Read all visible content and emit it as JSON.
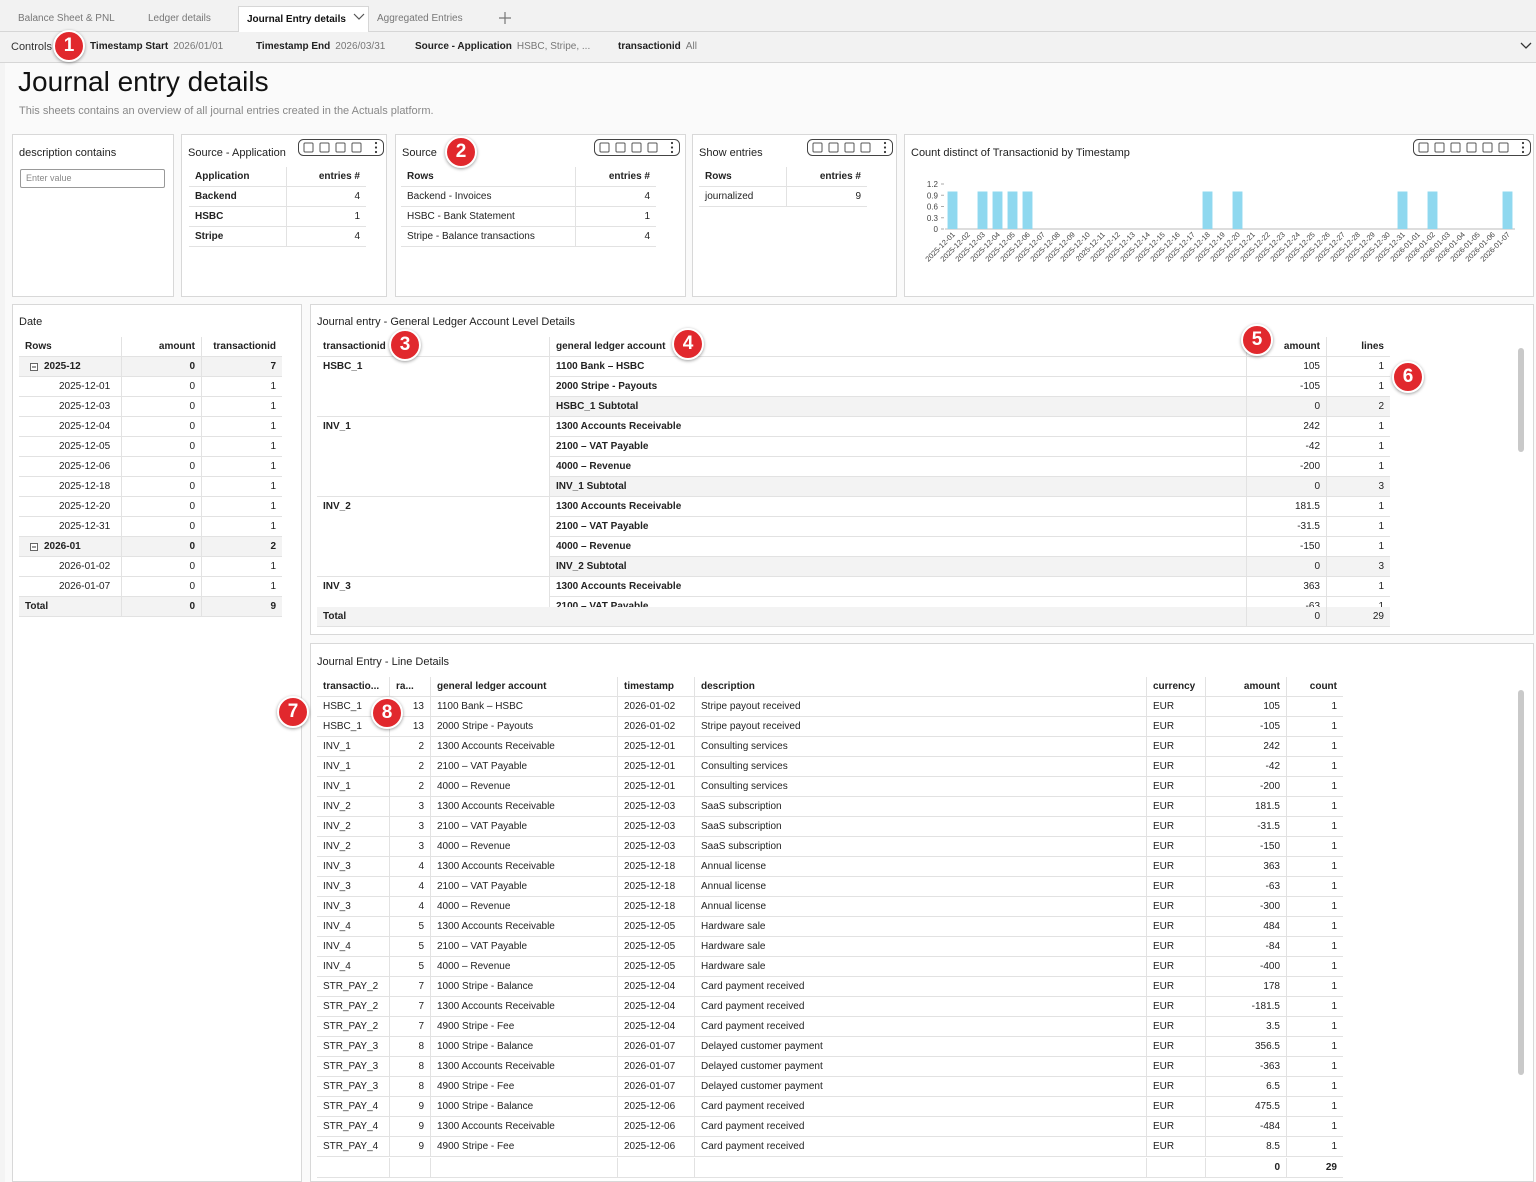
{
  "tabs": [
    "Balance Sheet & PNL",
    "Ledger details",
    "Journal Entry details",
    "Aggregated Entries"
  ],
  "controls": {
    "label": "Controls",
    "items": [
      {
        "label": "Timestamp Start",
        "value": "2026/01/01"
      },
      {
        "label": "Timestamp End",
        "value": "2026/03/31"
      },
      {
        "label": "Source - Application",
        "value": "HSBC, Stripe, ..."
      },
      {
        "label": "transactionid",
        "value": "All"
      }
    ]
  },
  "badges": [
    1,
    2,
    3,
    4,
    5,
    6,
    7,
    8
  ],
  "header": {
    "title": "Journal entry details",
    "description": "This sheets contains an overview of all journal entries created in the Actuals platform."
  },
  "filter": {
    "title": "description contains",
    "placeholder": "Enter value"
  },
  "source_application": {
    "title": "Source - Application",
    "headers": [
      "Application",
      "entries #"
    ],
    "rows": [
      [
        "Backend",
        4
      ],
      [
        "HSBC",
        1
      ],
      [
        "Stripe",
        4
      ]
    ]
  },
  "source": {
    "title": "Source",
    "headers": [
      "Rows",
      "entries #"
    ],
    "rows": [
      [
        "Backend - Invoices",
        4
      ],
      [
        "HSBC - Bank Statement",
        1
      ],
      [
        "Stripe - Balance transactions",
        4
      ]
    ]
  },
  "show_entries": {
    "title": "Show entries",
    "headers": [
      "Rows",
      "entries #"
    ],
    "rows": [
      [
        "journalized",
        9
      ]
    ]
  },
  "chart_data": {
    "type": "bar",
    "title": "Count distinct of Transactionid by Timestamp",
    "color": "#8fd8ef",
    "categories": [
      "2025-12-01",
      "2025-12-02",
      "2025-12-03",
      "2025-12-04",
      "2025-12-05",
      "2025-12-06",
      "2025-12-07",
      "2025-12-08",
      "2025-12-09",
      "2025-12-10",
      "2025-12-11",
      "2025-12-12",
      "2025-12-13",
      "2025-12-14",
      "2025-12-15",
      "2025-12-16",
      "2025-12-17",
      "2025-12-18",
      "2025-12-19",
      "2025-12-20",
      "2025-12-21",
      "2025-12-22",
      "2025-12-23",
      "2025-12-24",
      "2025-12-25",
      "2025-12-26",
      "2025-12-27",
      "2025-12-28",
      "2025-12-29",
      "2025-12-30",
      "2025-12-31",
      "2026-01-01",
      "2026-01-02",
      "2026-01-03",
      "2026-01-04",
      "2026-01-05",
      "2026-01-06",
      "2026-01-07"
    ],
    "values": [
      1,
      0,
      1,
      1,
      1,
      1,
      0,
      0,
      0,
      0,
      0,
      0,
      0,
      0,
      0,
      0,
      0,
      1,
      0,
      1,
      0,
      0,
      0,
      0,
      0,
      0,
      0,
      0,
      0,
      0,
      1,
      0,
      1,
      0,
      0,
      0,
      0,
      1
    ],
    "ylim": [
      0,
      1.2
    ],
    "yticks": [
      0,
      0.3,
      0.6,
      0.9,
      1.2
    ]
  },
  "date_table": {
    "title": "Date",
    "headers": [
      "Rows",
      "amount",
      "transactionid"
    ],
    "groups": [
      {
        "label": "2025-12",
        "amount": 0,
        "transactionid": 7,
        "rows": [
          [
            "2025-12-01",
            0,
            1
          ],
          [
            "2025-12-03",
            0,
            1
          ],
          [
            "2025-12-04",
            0,
            1
          ],
          [
            "2025-12-05",
            0,
            1
          ],
          [
            "2025-12-06",
            0,
            1
          ],
          [
            "2025-12-18",
            0,
            1
          ],
          [
            "2025-12-20",
            0,
            1
          ],
          [
            "2025-12-31",
            0,
            1
          ]
        ]
      },
      {
        "label": "2026-01",
        "amount": 0,
        "transactionid": 2,
        "rows": [
          [
            "2026-01-02",
            0,
            1
          ],
          [
            "2026-01-07",
            0,
            1
          ]
        ]
      }
    ],
    "total": [
      "Total",
      0,
      9
    ]
  },
  "gl_details": {
    "title": "Journal entry - General Ledger Account Level Details",
    "headers": [
      "transactionid",
      "general ledger account",
      "amount",
      "lines"
    ],
    "groups": [
      {
        "transactionid": "HSBC_1",
        "lines": [
          [
            "1100 Bank – HSBC",
            105,
            1
          ],
          [
            "2000 Stripe - Payouts",
            -105,
            1
          ]
        ],
        "subtotal": [
          "HSBC_1 Subtotal",
          0,
          2
        ]
      },
      {
        "transactionid": "INV_1",
        "lines": [
          [
            "1300 Accounts Receivable",
            242,
            1
          ],
          [
            "2100 – VAT Payable",
            -42,
            1
          ],
          [
            "4000 – Revenue",
            -200,
            1
          ]
        ],
        "subtotal": [
          "INV_1 Subtotal",
          0,
          3
        ]
      },
      {
        "transactionid": "INV_2",
        "lines": [
          [
            "1300 Accounts Receivable",
            181.5,
            1
          ],
          [
            "2100 – VAT Payable",
            -31.5,
            1
          ],
          [
            "4000 – Revenue",
            -150,
            1
          ]
        ],
        "subtotal": [
          "INV_2 Subtotal",
          0,
          3
        ]
      },
      {
        "transactionid": "INV_3",
        "lines": [
          [
            "1300 Accounts Receivable",
            363,
            1
          ],
          [
            "2100 – VAT Payable",
            -63,
            1
          ]
        ]
      }
    ],
    "total": [
      "Total",
      0,
      29
    ]
  },
  "line_details": {
    "title": "Journal Entry - Line Details",
    "headers": [
      "transactio...",
      "ra...",
      "general ledger account",
      "timestamp",
      "description",
      "currency",
      "amount",
      "count"
    ],
    "rows": [
      [
        "HSBC_1",
        13,
        "1100 Bank – HSBC",
        "2026-01-02",
        "Stripe payout received",
        "EUR",
        105,
        1
      ],
      [
        "HSBC_1",
        13,
        "2000 Stripe - Payouts",
        "2026-01-02",
        "Stripe payout received",
        "EUR",
        -105,
        1
      ],
      [
        "INV_1",
        2,
        "1300 Accounts Receivable",
        "2025-12-01",
        "Consulting services",
        "EUR",
        242,
        1
      ],
      [
        "INV_1",
        2,
        "2100 – VAT Payable",
        "2025-12-01",
        "Consulting services",
        "EUR",
        -42,
        1
      ],
      [
        "INV_1",
        2,
        "4000 – Revenue",
        "2025-12-01",
        "Consulting services",
        "EUR",
        -200,
        1
      ],
      [
        "INV_2",
        3,
        "1300 Accounts Receivable",
        "2025-12-03",
        "SaaS subscription",
        "EUR",
        181.5,
        1
      ],
      [
        "INV_2",
        3,
        "2100 – VAT Payable",
        "2025-12-03",
        "SaaS subscription",
        "EUR",
        -31.5,
        1
      ],
      [
        "INV_2",
        3,
        "4000 – Revenue",
        "2025-12-03",
        "SaaS subscription",
        "EUR",
        -150,
        1
      ],
      [
        "INV_3",
        4,
        "1300 Accounts Receivable",
        "2025-12-18",
        "Annual license",
        "EUR",
        363,
        1
      ],
      [
        "INV_3",
        4,
        "2100 – VAT Payable",
        "2025-12-18",
        "Annual license",
        "EUR",
        -63,
        1
      ],
      [
        "INV_3",
        4,
        "4000 – Revenue",
        "2025-12-18",
        "Annual license",
        "EUR",
        -300,
        1
      ],
      [
        "INV_4",
        5,
        "1300 Accounts Receivable",
        "2025-12-05",
        "Hardware sale",
        "EUR",
        484,
        1
      ],
      [
        "INV_4",
        5,
        "2100 – VAT Payable",
        "2025-12-05",
        "Hardware sale",
        "EUR",
        -84,
        1
      ],
      [
        "INV_4",
        5,
        "4000 – Revenue",
        "2025-12-05",
        "Hardware sale",
        "EUR",
        -400,
        1
      ],
      [
        "STR_PAY_2",
        7,
        "1000 Stripe - Balance",
        "2025-12-04",
        "Card payment received",
        "EUR",
        178,
        1
      ],
      [
        "STR_PAY_2",
        7,
        "1300 Accounts Receivable",
        "2025-12-04",
        "Card payment received",
        "EUR",
        -181.5,
        1
      ],
      [
        "STR_PAY_2",
        7,
        "4900 Stripe - Fee",
        "2025-12-04",
        "Card payment received",
        "EUR",
        3.5,
        1
      ],
      [
        "STR_PAY_3",
        8,
        "1000 Stripe - Balance",
        "2026-01-07",
        "Delayed customer payment",
        "EUR",
        356.5,
        1
      ],
      [
        "STR_PAY_3",
        8,
        "1300 Accounts Receivable",
        "2026-01-07",
        "Delayed customer payment",
        "EUR",
        -363,
        1
      ],
      [
        "STR_PAY_3",
        8,
        "4900 Stripe - Fee",
        "2026-01-07",
        "Delayed customer payment",
        "EUR",
        6.5,
        1
      ],
      [
        "STR_PAY_4",
        9,
        "1000 Stripe - Balance",
        "2025-12-06",
        "Card payment received",
        "EUR",
        475.5,
        1
      ],
      [
        "STR_PAY_4",
        9,
        "1300 Accounts Receivable",
        "2025-12-06",
        "Card payment received",
        "EUR",
        -484,
        1
      ],
      [
        "STR_PAY_4",
        9,
        "4900 Stripe - Fee",
        "2025-12-06",
        "Card payment received",
        "EUR",
        8.5,
        1
      ]
    ],
    "total": {
      "amount": 0,
      "count": 29
    }
  }
}
